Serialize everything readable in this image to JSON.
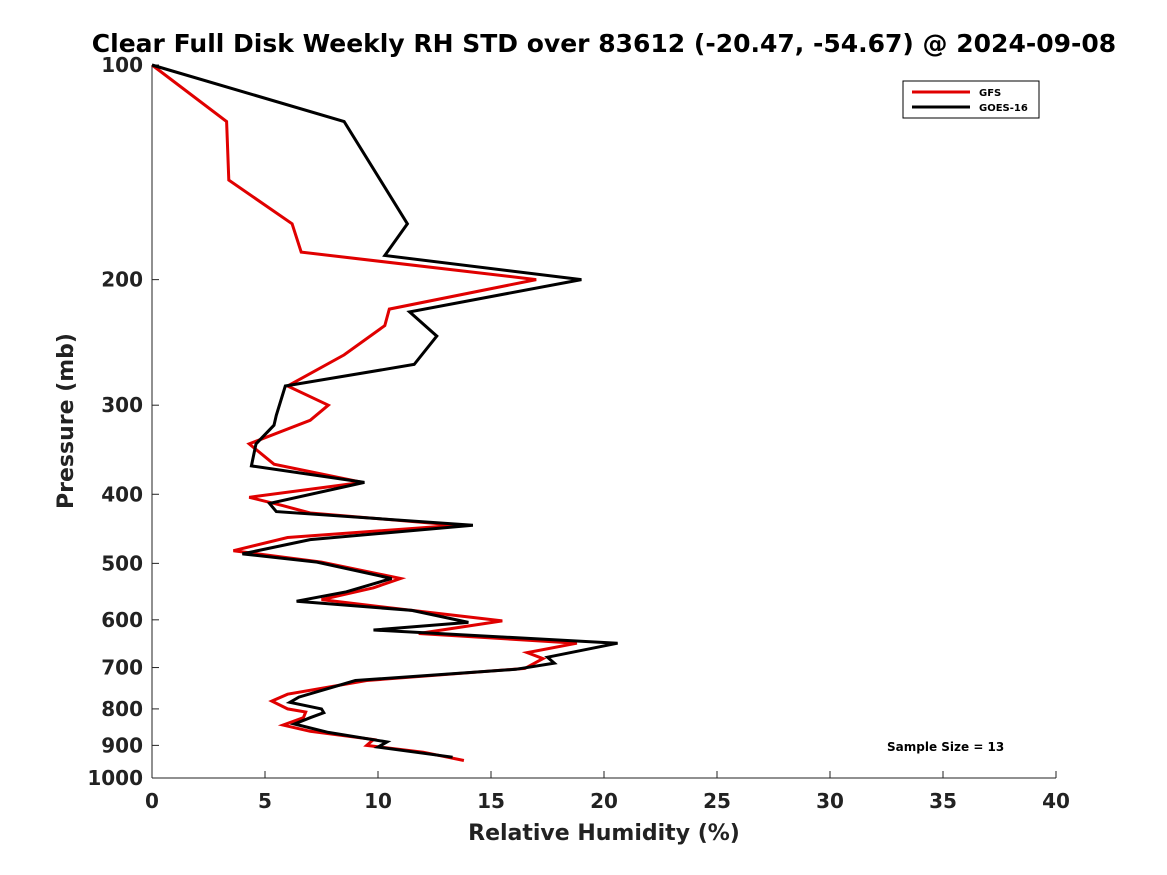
{
  "chart_data": {
    "type": "line",
    "title": "Clear Full Disk Weekly RH STD over 83612 (-20.47, -54.67) @ 2024-09-08",
    "xlabel": "Relative Humidity (%)",
    "ylabel": "Pressure (mb)",
    "xlim": [
      0,
      40
    ],
    "ylim": [
      100,
      1000
    ],
    "y_scale": "log",
    "y_reversed": true,
    "xticks": [
      0,
      5,
      10,
      15,
      20,
      25,
      30,
      35,
      40
    ],
    "yticks": [
      100,
      200,
      300,
      400,
      500,
      600,
      700,
      800,
      900,
      1000
    ],
    "grid": false,
    "legend_position": "top-right",
    "annotation": "Sample Size = 13",
    "series": [
      {
        "name": "GFS",
        "color": "#e00000",
        "points": [
          [
            0.0,
            100
          ],
          [
            3.3,
            120
          ],
          [
            3.4,
            145
          ],
          [
            6.2,
            167
          ],
          [
            6.6,
            183
          ],
          [
            17.0,
            200
          ],
          [
            10.5,
            220
          ],
          [
            10.3,
            232
          ],
          [
            8.5,
            255
          ],
          [
            6.0,
            282
          ],
          [
            7.8,
            300
          ],
          [
            7.0,
            315
          ],
          [
            4.3,
            340
          ],
          [
            5.4,
            363
          ],
          [
            9.3,
            385
          ],
          [
            4.3,
            404
          ],
          [
            5.8,
            415
          ],
          [
            7.0,
            425
          ],
          [
            13.5,
            442
          ],
          [
            6.0,
            460
          ],
          [
            3.6,
            480
          ],
          [
            7.5,
            498
          ],
          [
            11.0,
            525
          ],
          [
            9.8,
            541
          ],
          [
            7.5,
            562
          ],
          [
            11.5,
            582
          ],
          [
            15.5,
            602
          ],
          [
            11.8,
            627
          ],
          [
            18.8,
            647
          ],
          [
            16.6,
            667
          ],
          [
            17.3,
            680
          ],
          [
            16.5,
            702
          ],
          [
            9.5,
            730
          ],
          [
            6.0,
            763
          ],
          [
            5.3,
            780
          ],
          [
            6.0,
            800
          ],
          [
            6.8,
            808
          ],
          [
            6.7,
            823
          ],
          [
            5.8,
            843
          ],
          [
            7.0,
            860
          ],
          [
            9.8,
            883
          ],
          [
            9.5,
            900
          ],
          [
            12.0,
            920
          ],
          [
            13.8,
            945
          ]
        ]
      },
      {
        "name": "GOES-16",
        "color": "#000000",
        "points": [
          [
            0.0,
            100
          ],
          [
            8.5,
            120
          ],
          [
            11.3,
            167
          ],
          [
            10.3,
            185
          ],
          [
            19.0,
            200
          ],
          [
            11.4,
            222
          ],
          [
            12.6,
            240
          ],
          [
            11.6,
            263
          ],
          [
            5.9,
            282
          ],
          [
            5.5,
            310
          ],
          [
            5.4,
            320
          ],
          [
            4.6,
            340
          ],
          [
            4.4,
            365
          ],
          [
            9.4,
            385
          ],
          [
            5.2,
            412
          ],
          [
            5.5,
            423
          ],
          [
            14.2,
            442
          ],
          [
            7.0,
            463
          ],
          [
            4.0,
            485
          ],
          [
            7.3,
            498
          ],
          [
            10.6,
            525
          ],
          [
            8.6,
            548
          ],
          [
            6.4,
            565
          ],
          [
            11.5,
            582
          ],
          [
            14.0,
            605
          ],
          [
            9.8,
            620
          ],
          [
            20.6,
            647
          ],
          [
            17.5,
            677
          ],
          [
            17.8,
            690
          ],
          [
            16.1,
            704
          ],
          [
            9.0,
            730
          ],
          [
            6.5,
            770
          ],
          [
            6.1,
            783
          ],
          [
            7.5,
            800
          ],
          [
            7.6,
            810
          ],
          [
            7.0,
            823
          ],
          [
            6.3,
            840
          ],
          [
            7.8,
            863
          ],
          [
            10.4,
            890
          ],
          [
            10.0,
            905
          ],
          [
            13.3,
            935
          ]
        ]
      }
    ]
  }
}
